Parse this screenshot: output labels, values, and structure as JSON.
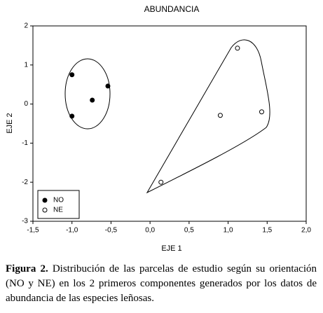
{
  "chart_data": {
    "type": "scatter",
    "title": "ABUNDANCIA",
    "x_label": "EJE 1",
    "y_label": "EJE 2",
    "xlim": [
      -1.5,
      2.0
    ],
    "ylim": [
      -3,
      2
    ],
    "xticks": [
      {
        "value": -1.5,
        "label": "-1,5"
      },
      {
        "value": -1.0,
        "label": "-1,0"
      },
      {
        "value": -0.5,
        "label": "-0,5"
      },
      {
        "value": 0.0,
        "label": "0,0"
      },
      {
        "value": 0.5,
        "label": "0,5"
      },
      {
        "value": 1.0,
        "label": "1,0"
      },
      {
        "value": 1.5,
        "label": "1,5"
      },
      {
        "value": 2.0,
        "label": "2,0"
      }
    ],
    "yticks": [
      -3,
      -2,
      -1,
      0,
      1,
      2
    ],
    "legend": "bottom-left",
    "series": [
      {
        "name": "NO",
        "color": "#000000",
        "filled": true,
        "x": [
          -1.0,
          -0.74,
          -0.54,
          -1.0
        ],
        "values": [
          0.75,
          0.1,
          0.46,
          -0.31
        ]
      },
      {
        "name": "NE",
        "color": "#000000",
        "filled": false,
        "x": [
          0.14,
          0.9,
          1.12,
          1.43
        ],
        "values": [
          -2.0,
          -0.29,
          1.43,
          -0.2
        ]
      }
    ]
  },
  "caption": {
    "label": "Figura 2.",
    "text": "Distribución de las parcelas de estudio según su orientación (NO y NE) en los 2 primeros componentes generados por los datos de abundancia de las especies leñosas."
  }
}
